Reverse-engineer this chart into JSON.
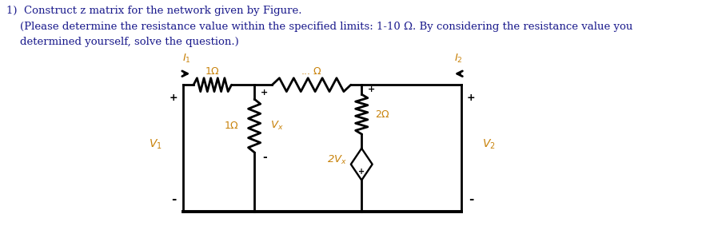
{
  "title_line1": "1)  Construct z matrix for the network given by Figure.",
  "title_line2": "    (Please determine the resistance value within the specified limits: 1-10 Ω. By considering the resistance value you",
  "title_line3": "    determined yourself, solve the question.)",
  "bg_color": "#ffffff",
  "text_color": "#1a1a8c",
  "circuit_color": "#000000",
  "label_color": "#c8820a",
  "font_size_title": 9.5,
  "xL": 2.55,
  "xM1": 3.55,
  "xM2": 5.05,
  "xR": 6.45,
  "yT": 1.82,
  "yB": 0.22,
  "lw": 2.0
}
